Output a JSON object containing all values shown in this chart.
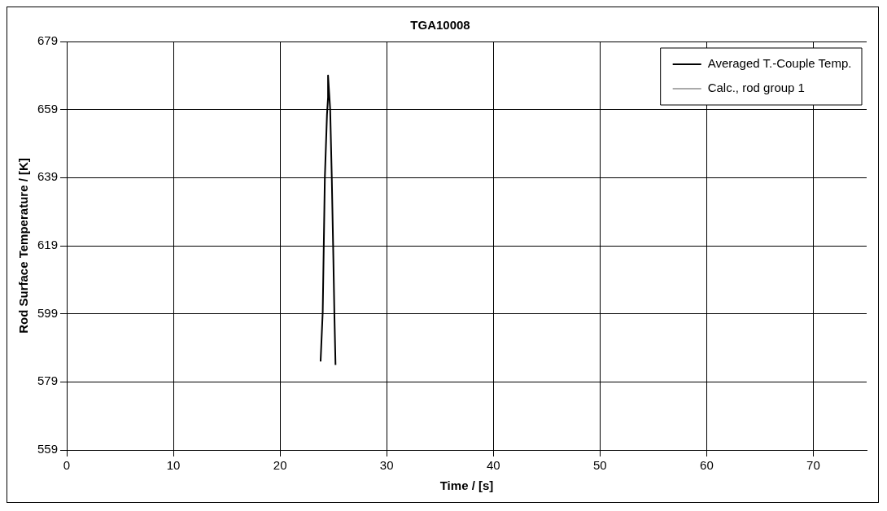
{
  "chart_data": {
    "type": "line",
    "title": "TGA10008",
    "xlabel": "Time / [s]",
    "ylabel": "Rod Surface Temperature / [K]",
    "xlim": [
      0,
      75
    ],
    "xticks": [
      0,
      10,
      20,
      30,
      40,
      50,
      60,
      70
    ],
    "ylim": [
      559,
      679
    ],
    "yticks": [
      559,
      579,
      599,
      619,
      639,
      659,
      679
    ],
    "grid": true,
    "legend": "top right",
    "marker": "none",
    "line_style": "solid",
    "series": [
      {
        "name": "Averaged T.-Couple Temp.",
        "color": "#000000",
        "x": [
          23.8,
          24.0,
          24.2,
          24.4,
          24.5,
          24.5,
          24.7,
          24.85,
          25.0,
          25.1,
          25.2
        ],
        "values": [
          585,
          599.5,
          639,
          657.5,
          662.6,
          669,
          659,
          639,
          615,
          598,
          584
        ]
      },
      {
        "name": "Calc., rod group 1",
        "color": "#555555"
      }
    ]
  }
}
